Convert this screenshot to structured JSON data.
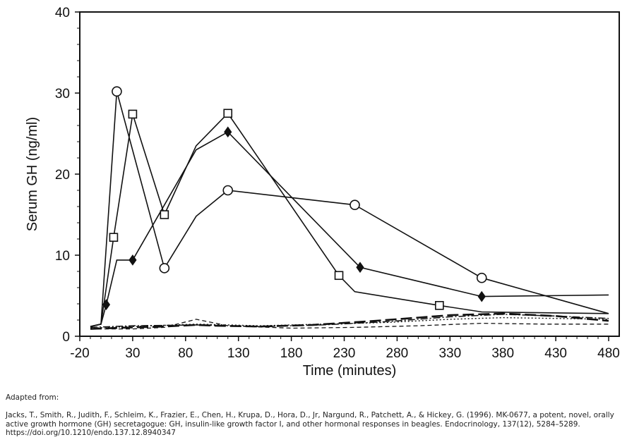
{
  "chart_data": {
    "type": "line",
    "xlabel": "Time (minutes)",
    "ylabel": "Serum GH (ng/ml)",
    "xlim": [
      -20,
      490
    ],
    "ylim": [
      0,
      40
    ],
    "xticks": [
      -20,
      30,
      80,
      130,
      180,
      230,
      280,
      330,
      380,
      430,
      480
    ],
    "yticks": [
      0,
      10,
      20,
      30,
      40
    ],
    "grid": false,
    "legend": "none",
    "series": [
      {
        "marker": "circle-open",
        "style": "solid",
        "x": [
          -10,
          0,
          15,
          60,
          90,
          120,
          240,
          360,
          480
        ],
        "y": [
          1.2,
          1.5,
          30.2,
          8.4,
          14.8,
          18.0,
          16.2,
          7.2,
          2.8
        ],
        "marked": [
          false,
          false,
          true,
          true,
          false,
          true,
          true,
          true,
          false
        ]
      },
      {
        "marker": "square-open",
        "style": "solid",
        "x": [
          -10,
          0,
          12,
          30,
          60,
          90,
          120,
          225,
          240,
          320,
          360,
          480
        ],
        "y": [
          1.2,
          1.5,
          12.2,
          27.4,
          15.0,
          23.5,
          27.5,
          7.5,
          5.5,
          3.8,
          3.0,
          2.8
        ],
        "marked": [
          false,
          false,
          true,
          true,
          true,
          false,
          true,
          true,
          false,
          true,
          false,
          false
        ]
      },
      {
        "marker": "diamond-filled",
        "style": "solid",
        "x": [
          -10,
          0,
          5,
          15,
          30,
          90,
          120,
          245,
          360,
          480
        ],
        "y": [
          1.2,
          1.5,
          3.9,
          9.4,
          9.4,
          23.0,
          25.2,
          8.5,
          4.9,
          5.1
        ],
        "marked": [
          false,
          false,
          true,
          false,
          true,
          false,
          true,
          true,
          true,
          false
        ]
      },
      {
        "marker": "none",
        "style": "long-dash",
        "x": [
          -10,
          30,
          60,
          90,
          110,
          150,
          200,
          260,
          330,
          380,
          430,
          480
        ],
        "y": [
          0.9,
          1.1,
          1.2,
          1.4,
          1.3,
          1.2,
          1.4,
          1.9,
          2.6,
          2.8,
          2.5,
          1.9
        ]
      },
      {
        "marker": "none",
        "style": "short-dash",
        "x": [
          -10,
          30,
          60,
          90,
          120,
          180,
          240,
          300,
          360,
          420,
          480
        ],
        "y": [
          0.9,
          0.9,
          1.1,
          2.1,
          1.3,
          1.0,
          1.1,
          1.3,
          1.6,
          1.5,
          1.5
        ]
      },
      {
        "marker": "none",
        "style": "dotted",
        "x": [
          -10,
          30,
          90,
          150,
          210,
          270,
          330,
          380,
          430,
          480
        ],
        "y": [
          1.0,
          1.2,
          1.5,
          1.3,
          1.5,
          1.7,
          2.1,
          2.3,
          2.2,
          2.1
        ]
      },
      {
        "marker": "none",
        "style": "dash-dot",
        "x": [
          -10,
          30,
          90,
          150,
          210,
          270,
          330,
          380,
          430,
          480
        ],
        "y": [
          1.1,
          1.3,
          1.4,
          1.2,
          1.4,
          1.8,
          2.4,
          2.7,
          2.5,
          2.2
        ]
      }
    ]
  },
  "caption": {
    "line1": "Adapted from:",
    "line2": "Jacks, T., Smith, R., Judith, F., Schleim, K., Frazier, E., Chen, H., Krupa, D., Hora, D., Jr, Nargund, R., Patchett, A., & Hickey, G. (1996). MK-0677, a potent, novel, orally active growth hormone (GH) secretagogue: GH, insulin-like growth factor I, and other hormonal responses in beagles. Endocrinology, 137(12), 5284–5289. https://doi.org/10.1210/endo.137.12.8940347"
  }
}
